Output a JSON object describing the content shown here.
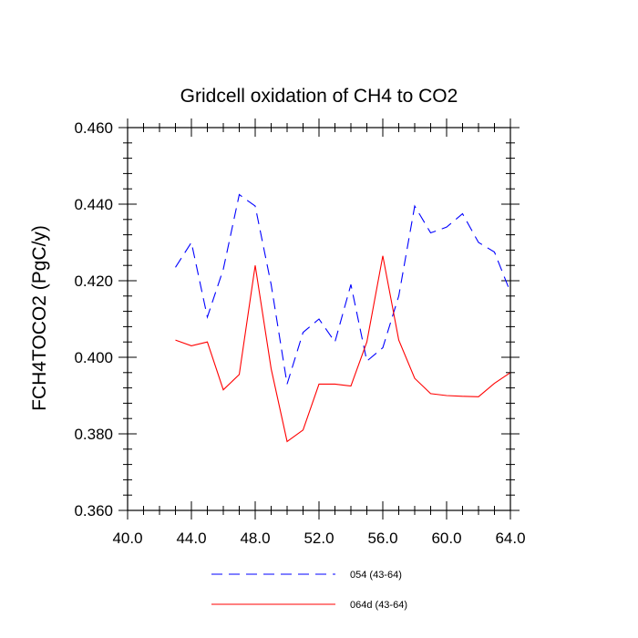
{
  "chart_data": {
    "type": "line",
    "title": "Gridcell oxidation of CH4 to CO2",
    "xlabel": "",
    "ylabel": "FCH4TOCO2  (PgC/y)",
    "xlim": [
      40,
      64
    ],
    "ylim": [
      0.36,
      0.46
    ],
    "x_ticks": [
      40,
      44,
      48,
      52,
      56,
      60,
      64
    ],
    "x_tick_labels": [
      "40.0",
      "44.0",
      "48.0",
      "52.0",
      "56.0",
      "60.0",
      "64.0"
    ],
    "y_ticks": [
      0.36,
      0.38,
      0.4,
      0.42,
      0.44,
      0.46
    ],
    "y_tick_labels": [
      "0.360",
      "0.380",
      "0.400",
      "0.420",
      "0.440",
      "0.460"
    ],
    "legend_position": "bottom",
    "x": [
      43,
      44,
      45,
      46,
      47,
      48,
      49,
      50,
      51,
      52,
      53,
      54,
      55,
      56,
      57,
      58,
      59,
      60,
      61,
      62,
      63,
      64
    ],
    "series": [
      {
        "name": "054 (43-64)",
        "color": "#0000ff",
        "dash": "dashed",
        "values": [
          0.4235,
          0.43,
          0.4105,
          0.423,
          0.4425,
          0.4395,
          0.419,
          0.393,
          0.4065,
          0.41,
          0.404,
          0.419,
          0.399,
          0.4025,
          0.416,
          0.4395,
          0.4325,
          0.434,
          0.4375,
          0.43,
          0.4275,
          0.417
        ]
      },
      {
        "name": "064d (43-64)",
        "color": "#ff0000",
        "dash": "solid",
        "values": [
          0.4045,
          0.403,
          0.404,
          0.3915,
          0.3955,
          0.424,
          0.397,
          0.378,
          0.381,
          0.393,
          0.393,
          0.3925,
          0.404,
          0.4265,
          0.4045,
          0.3945,
          0.3905,
          0.39,
          0.3898,
          0.3897,
          0.3932,
          0.396
        ]
      }
    ]
  }
}
